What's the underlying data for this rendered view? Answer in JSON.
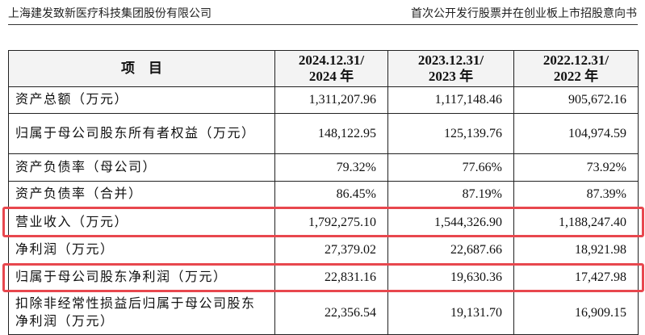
{
  "header": {
    "company": "上海建发致新医疗科技集团股份有限公司",
    "document": "首次公开发行股票并在创业板上市招股意向书"
  },
  "table": {
    "columns": [
      [
        "项　目"
      ],
      [
        "2024.12.31/",
        "2024 年"
      ],
      [
        "2023.12.31/",
        "2023 年"
      ],
      [
        "2022.12.31/",
        "2022 年"
      ]
    ],
    "rows": [
      [
        "资产总额（万元）",
        "1,311,207.96",
        "1,117,148.46",
        "905,672.16"
      ],
      [
        "归属于母公司股东所有者权益（万元）",
        "148,122.95",
        "125,139.76",
        "104,974.59"
      ],
      [
        "资产负债率（母公司）",
        "79.32%",
        "77.66%",
        "73.92%"
      ],
      [
        "资产负债率（合并）",
        "86.45%",
        "87.19%",
        "87.39%"
      ],
      [
        "营业收入（万元）",
        "1,792,275.10",
        "1,544,326.90",
        "1,188,247.40"
      ],
      [
        "净利润（万元）",
        "27,379.02",
        "22,687.66",
        "18,921.98"
      ],
      [
        "归属于母公司股东净利润（万元）",
        "22,831.16",
        "19,630.36",
        "17,427.98"
      ],
      [
        "扣除非经常性损益后归属于母公司股东净利润（万元）",
        "22,356.54",
        "19,131.70",
        "16,909.15"
      ]
    ]
  }
}
